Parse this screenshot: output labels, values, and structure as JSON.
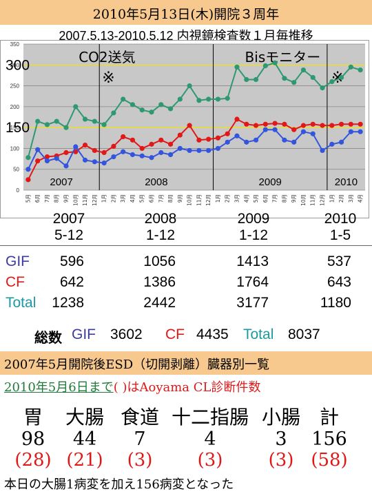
{
  "header": {
    "title": "2010年5月13日(木)開院３周年",
    "subtitle": "2007.5.13-2010.5.12 内視鏡検査数１月毎推移"
  },
  "chart_data": {
    "type": "line",
    "ylim": [
      0,
      350
    ],
    "yticks": [
      "0",
      "50",
      "100",
      "150",
      "200",
      "250",
      "300",
      "350"
    ],
    "months": [
      "5月",
      "6月",
      "7月",
      "8月",
      "9月",
      "10月",
      "11月",
      "12月",
      "1月",
      "2月",
      "3月",
      "4月",
      "5月",
      "6月",
      "7月",
      "8月",
      "9月",
      "10月",
      "11月",
      "12月",
      "1月",
      "2月",
      "3月",
      "4月",
      "5月",
      "6月",
      "7月",
      "8月",
      "9月",
      "10月",
      "11月",
      "12月",
      "1月",
      "2月",
      "3月",
      "4月"
    ],
    "year_labels": [
      "2007",
      "2008",
      "2009",
      "2010"
    ],
    "reference_lines": [
      {
        "label": "300",
        "value": 300
      },
      {
        "label": "150",
        "value": 150
      }
    ],
    "annotations": [
      "CO2送気",
      "※",
      "Bisモニター",
      "※"
    ],
    "series": [
      {
        "name": "Total",
        "color": "#2e9970",
        "values": [
          78,
          165,
          157,
          165,
          150,
          200,
          170,
          165,
          157,
          185,
          218,
          205,
          192,
          187,
          205,
          195,
          218,
          250,
          215,
          218,
          218,
          220,
          295,
          265,
          265,
          298,
          305,
          268,
          258,
          288,
          270,
          245,
          260,
          270,
          295,
          288
        ]
      },
      {
        "name": "CF",
        "color": "#e01818",
        "values": [
          25,
          70,
          80,
          82,
          90,
          92,
          108,
          95,
          90,
          105,
          128,
          120,
          100,
          110,
          120,
          110,
          132,
          155,
          120,
          122,
          125,
          135,
          170,
          158,
          155,
          158,
          160,
          158,
          145,
          155,
          158,
          155,
          155,
          158,
          158,
          158
        ]
      },
      {
        "name": "GIF",
        "color": "#3355dd",
        "values": [
          50,
          97,
          70,
          76,
          58,
          104,
          72,
          68,
          65,
          80,
          92,
          85,
          82,
          78,
          90,
          85,
          100,
          95,
          95,
          95,
          100,
          115,
          130,
          115,
          120,
          145,
          145,
          120,
          115,
          140,
          135,
          95,
          110,
          115,
          140,
          140
        ]
      }
    ]
  },
  "periods": {
    "years": [
      "2007",
      "2008",
      "2009",
      "2010"
    ],
    "ranges": [
      "5-12",
      "1-12",
      "1-12",
      "1-5"
    ]
  },
  "stats": {
    "rows": [
      {
        "label": "GIF",
        "color": "#3b3b9e",
        "values": [
          "596",
          "1056",
          "1413",
          "537"
        ]
      },
      {
        "label": "CF",
        "color": "#e01818",
        "values": [
          "642",
          "1386",
          "1764",
          "643"
        ]
      },
      {
        "label": "Total",
        "color": "#1a9aa0",
        "values": [
          "1238",
          "2442",
          "3177",
          "1180"
        ]
      }
    ]
  },
  "totals": {
    "label": "総数",
    "gif_label": "GIF",
    "gif_value": "3602",
    "cf_label": "CF",
    "cf_value": "4435",
    "total_label": "Total",
    "total_value": "8037",
    "gif_color": "#3b3b9e",
    "cf_color": "#e01818",
    "total_color": "#1a9aa0"
  },
  "esd": {
    "heading": "2007年5月開院後ESD（切開剥離）臓器別一覧",
    "subheading_green": "2010年5月6日まで",
    "subheading_red": "( )はAoyama CL診断件数",
    "organs": [
      "胃",
      "大腸",
      "食道",
      "十二指腸",
      "小腸",
      "計"
    ],
    "counts": [
      "98",
      "44",
      "7",
      "4",
      "3",
      "156"
    ],
    "clinic_counts": [
      "(28)",
      "(21)",
      "(3)",
      "(3)",
      "(3)",
      "(58)"
    ],
    "footnote": "本日の大腸1病変を加え156病変となった"
  }
}
